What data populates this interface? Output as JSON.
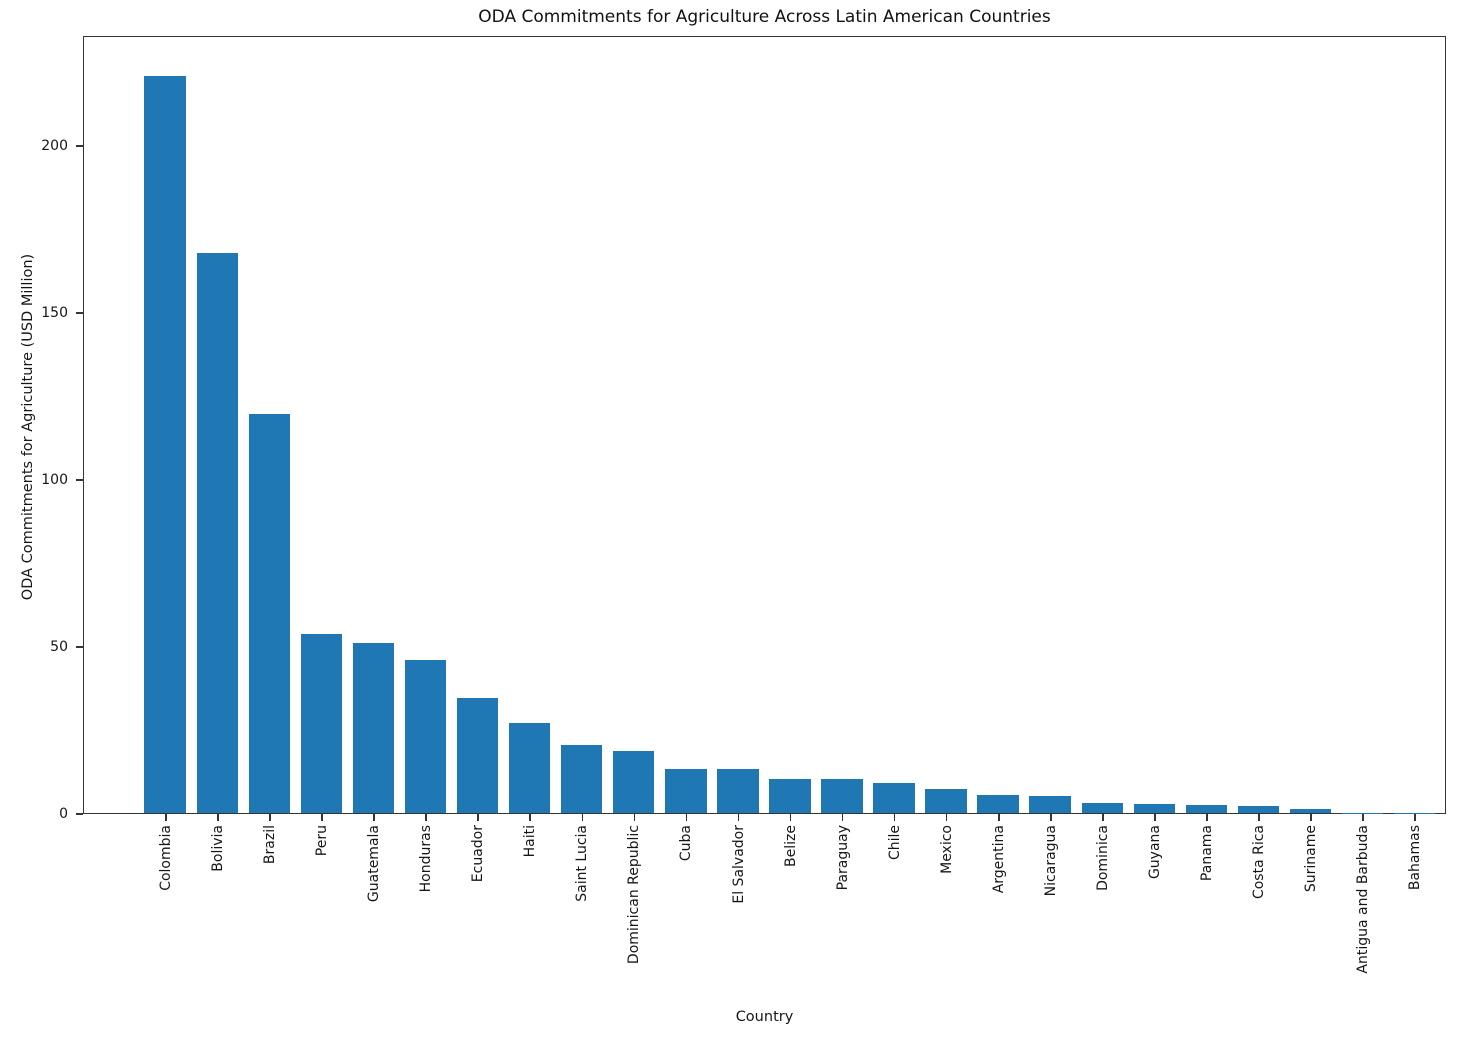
{
  "chart_data": {
    "type": "bar",
    "title": "ODA Commitments for Agriculture Across Latin American Countries",
    "xlabel": "Country",
    "ylabel": "ODA Commitments for Agriculture (USD Million)",
    "categories": [
      "Colombia",
      "Bolivia",
      "Brazil",
      "Peru",
      "Guatemala",
      "Honduras",
      "Ecuador",
      "Haiti",
      "Saint Lucia",
      "Dominican Republic",
      "Cuba",
      "El Salvador",
      "Belize",
      "Paraguay",
      "Chile",
      "Mexico",
      "Argentina",
      "Nicaragua",
      "Dominica",
      "Guyana",
      "Panama",
      "Costa Rica",
      "Suriname",
      "Antigua and Barbuda",
      "Bahamas"
    ],
    "values": [
      220.8,
      167.8,
      119.5,
      53.5,
      51.0,
      45.8,
      34.6,
      27.0,
      20.4,
      18.5,
      13.3,
      13.1,
      10.3,
      10.1,
      9.1,
      7.2,
      5.4,
      5.2,
      3.0,
      2.6,
      2.3,
      2.2,
      1.3,
      0.1,
      0.05
    ],
    "yticks": [
      0,
      50,
      100,
      150,
      200
    ],
    "ylim": [
      0,
      233
    ],
    "bar_color": "#1f77b4",
    "x_tick_rotation": 90,
    "grid": false,
    "legend": "none"
  }
}
